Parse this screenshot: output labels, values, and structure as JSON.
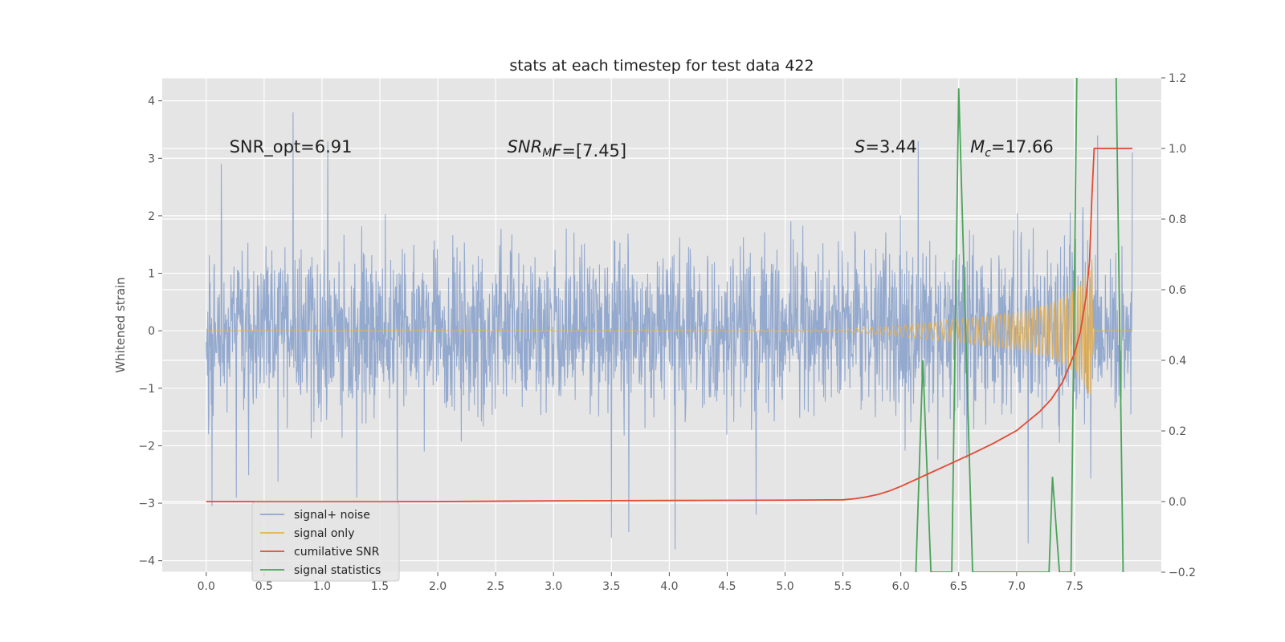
{
  "chart_data": {
    "type": "line",
    "title": "stats at each timestep for test data 422",
    "ylabel": "Whitened strain",
    "xlim": [
      -0.38,
      8.25
    ],
    "ylim": [
      -4.2,
      4.4
    ],
    "y2lim": [
      -0.2,
      1.2
    ],
    "x_ticks": [
      "0.0",
      "0.5",
      "1.0",
      "1.5",
      "2.0",
      "2.5",
      "3.0",
      "3.5",
      "4.0",
      "4.5",
      "5.0",
      "5.5",
      "6.0",
      "6.5",
      "7.0",
      "7.5"
    ],
    "y_ticks": [
      "−4",
      "−3",
      "−2",
      "−1",
      "0",
      "1",
      "2",
      "3",
      "4"
    ],
    "y2_ticks": [
      "−0.2",
      "0.0",
      "0.2",
      "0.4",
      "0.6",
      "0.8",
      "1.0",
      "1.2"
    ],
    "grid": true,
    "legend_position": "lower-left",
    "colors": {
      "background": "#e5e5e5",
      "grid": "#ffffff",
      "noise": "#8fa5cc",
      "signal": "#e8b04e",
      "snr": "#e24a33",
      "stats": "#4aa359"
    },
    "annotations": [
      {
        "text": "SNR_opt=6.91",
        "x": 0.2,
        "y": 3.2
      },
      {
        "text": "SNR_MF=[7.45]",
        "x": 2.6,
        "y": 3.2
      },
      {
        "text": "S=3.44",
        "x": 5.6,
        "y": 3.2
      },
      {
        "text": "M_c=17.66",
        "x": 6.6,
        "y": 3.2
      }
    ],
    "series": [
      {
        "name": "signal+ noise",
        "axis": "left",
        "x_range": [
          0.0,
          8.0
        ],
        "sample_count": 2000,
        "envelope": {
          "typical": [
            -1.8,
            1.9
          ],
          "extremes": [
            -3.8,
            3.8
          ]
        },
        "spikes": [
          {
            "x": 0.02,
            "y": -1.8
          },
          {
            "x": 0.05,
            "y": -3.05
          },
          {
            "x": 0.13,
            "y": 2.9
          },
          {
            "x": 0.26,
            "y": -2.9
          },
          {
            "x": 0.75,
            "y": 3.8
          },
          {
            "x": 1.05,
            "y": 3.3
          },
          {
            "x": 1.3,
            "y": -2.9
          },
          {
            "x": 1.65,
            "y": -3.3
          },
          {
            "x": 3.5,
            "y": -3.6
          },
          {
            "x": 3.65,
            "y": -3.5
          },
          {
            "x": 4.05,
            "y": -3.8
          },
          {
            "x": 4.75,
            "y": -3.2
          },
          {
            "x": 6.15,
            "y": 3.3
          },
          {
            "x": 7.1,
            "y": -3.7
          },
          {
            "x": 7.7,
            "y": 3.4
          },
          {
            "x": 8.0,
            "y": 3.1
          }
        ]
      },
      {
        "name": "signal only",
        "axis": "left",
        "x": [
          0.0,
          5.5,
          6.0,
          6.5,
          7.0,
          7.3,
          7.5,
          7.6,
          7.65,
          7.67,
          8.0
        ],
        "amplitude": [
          0.0,
          0.02,
          0.1,
          0.2,
          0.33,
          0.48,
          0.72,
          1.0,
          1.25,
          0.0,
          0.0
        ],
        "chirp_frequency": [
          0.0,
          14.0,
          18.0,
          22.0,
          28.0,
          34.0,
          42.0,
          50.0,
          56.0,
          0.0,
          0.0
        ]
      },
      {
        "name": "cumilative SNR",
        "axis": "right",
        "x": [
          0.0,
          1.0,
          2.0,
          3.0,
          4.0,
          5.0,
          5.5,
          5.6,
          5.7,
          5.8,
          5.9,
          6.0,
          6.2,
          6.4,
          6.6,
          6.8,
          7.0,
          7.2,
          7.3,
          7.4,
          7.5,
          7.55,
          7.6,
          7.63,
          7.65,
          7.67,
          8.0
        ],
        "values": [
          0.0,
          0.0,
          0.0,
          0.002,
          0.003,
          0.004,
          0.005,
          0.008,
          0.013,
          0.02,
          0.03,
          0.043,
          0.073,
          0.103,
          0.133,
          0.165,
          0.201,
          0.255,
          0.29,
          0.34,
          0.42,
          0.48,
          0.58,
          0.68,
          0.86,
          1.0,
          1.0
        ]
      },
      {
        "name": "signal statistics",
        "axis": "right",
        "x": [
          6.13,
          6.19,
          6.26,
          6.44,
          6.5,
          6.62,
          7.28,
          7.31,
          7.37,
          7.47,
          7.52,
          7.54,
          7.62,
          7.86,
          7.92
        ],
        "values": [
          -0.2,
          0.4,
          -0.2,
          -0.2,
          1.17,
          -0.2,
          -0.2,
          0.07,
          -0.2,
          -0.2,
          1.2,
          1.3,
          2.5,
          1.2,
          -0.2
        ]
      }
    ]
  }
}
